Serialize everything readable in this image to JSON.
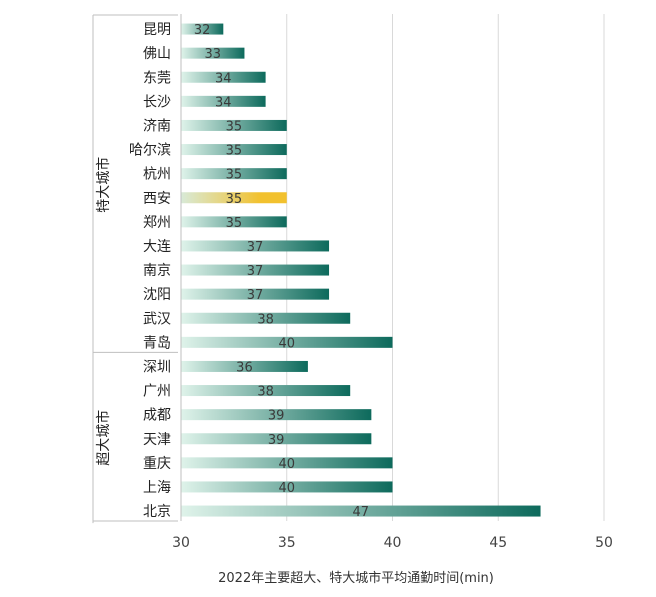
{
  "chart_data": {
    "type": "bar",
    "orientation": "horizontal",
    "xlabel": "2022年主要超大、特大城市平均通勤时间(min)",
    "xlim": [
      30,
      50
    ],
    "xticks": [
      30,
      35,
      40,
      45,
      50
    ],
    "grid": true,
    "groups": [
      {
        "name": "特大城市",
        "categories": [
          "昆明",
          "佛山",
          "东莞",
          "长沙",
          "济南",
          "哈尔滨",
          "杭州",
          "西安",
          "郑州",
          "大连",
          "南京",
          "沈阳",
          "武汉",
          "青岛"
        ],
        "values": [
          32,
          33,
          34,
          34,
          35,
          35,
          35,
          35,
          35,
          37,
          37,
          37,
          38,
          40
        ]
      },
      {
        "name": "超大城市",
        "categories": [
          "深圳",
          "广州",
          "成都",
          "天津",
          "重庆",
          "上海",
          "北京"
        ],
        "values": [
          36,
          38,
          39,
          39,
          40,
          40,
          47
        ]
      }
    ],
    "highlight": "西安",
    "colors": {
      "bar_start": "#dff3ea",
      "bar_end": "#0d6a5c",
      "highlight_start": "#d8ead8",
      "highlight_end": "#f2c12e",
      "grid": "#d9d9d9",
      "axis": "#bfbfbf"
    }
  }
}
